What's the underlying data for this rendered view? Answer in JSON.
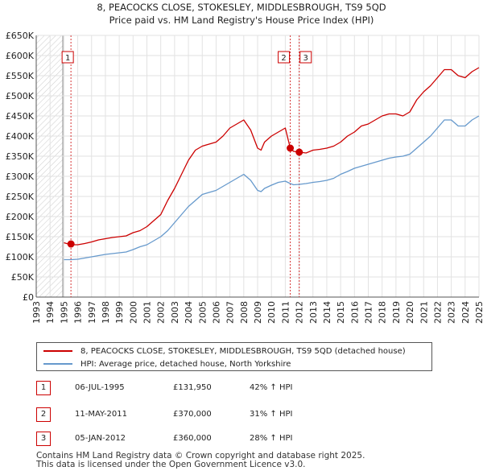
{
  "chart_data": {
    "type": "line",
    "title": "8, PEACOCKS CLOSE, STOKESLEY, MIDDLESBROUGH, TS9 5QD",
    "subtitle": "Price paid vs. HM Land Registry's House Price Index (HPI)",
    "xlim": [
      1993,
      2025
    ],
    "ylim": [
      0,
      650000
    ],
    "x_ticks": [
      "1993",
      "1994",
      "1995",
      "1996",
      "1997",
      "1998",
      "1999",
      "2000",
      "2001",
      "2002",
      "2003",
      "2004",
      "2005",
      "2006",
      "2007",
      "2008",
      "2009",
      "2010",
      "2011",
      "2012",
      "2013",
      "2014",
      "2015",
      "2016",
      "2017",
      "2018",
      "2019",
      "2020",
      "2021",
      "2022",
      "2023",
      "2024",
      "2025"
    ],
    "y_ticks": [
      {
        "value": 0,
        "label": "£0"
      },
      {
        "value": 50000,
        "label": "£50K"
      },
      {
        "value": 100000,
        "label": "£100K"
      },
      {
        "value": 150000,
        "label": "£150K"
      },
      {
        "value": 200000,
        "label": "£200K"
      },
      {
        "value": 250000,
        "label": "£250K"
      },
      {
        "value": 300000,
        "label": "£300K"
      },
      {
        "value": 350000,
        "label": "£350K"
      },
      {
        "value": 400000,
        "label": "£400K"
      },
      {
        "value": 450000,
        "label": "£450K"
      },
      {
        "value": 500000,
        "label": "£500K"
      },
      {
        "value": 550000,
        "label": "£550K"
      },
      {
        "value": 600000,
        "label": "£600K"
      },
      {
        "value": 650000,
        "label": "£650K"
      }
    ],
    "series": [
      {
        "name": "8, PEACOCKS CLOSE, STOKESLEY, MIDDLESBROUGH, TS9 5QD (detached house)",
        "color": "#cc0000",
        "x": [
          1995.0,
          1995.5,
          1996.0,
          1996.5,
          1997.0,
          1997.5,
          1998.0,
          1998.5,
          1999.0,
          1999.5,
          2000.0,
          2000.5,
          2001.0,
          2001.5,
          2002.0,
          2002.5,
          2003.0,
          2003.5,
          2004.0,
          2004.5,
          2005.0,
          2005.5,
          2006.0,
          2006.5,
          2007.0,
          2007.5,
          2008.0,
          2008.5,
          2009.0,
          2009.25,
          2009.5,
          2010.0,
          2010.5,
          2011.0,
          2011.36,
          2011.6,
          2012.01,
          2012.5,
          2013.0,
          2013.5,
          2014.0,
          2014.5,
          2015.0,
          2015.5,
          2016.0,
          2016.5,
          2017.0,
          2017.5,
          2018.0,
          2018.5,
          2019.0,
          2019.5,
          2020.0,
          2020.5,
          2021.0,
          2021.5,
          2022.0,
          2022.5,
          2023.0,
          2023.5,
          2024.0,
          2024.5,
          2025.0
        ],
        "values": [
          135000,
          130000,
          130000,
          133000,
          137000,
          142000,
          145000,
          148000,
          150000,
          152000,
          160000,
          165000,
          175000,
          190000,
          205000,
          240000,
          270000,
          305000,
          340000,
          365000,
          375000,
          380000,
          385000,
          400000,
          420000,
          430000,
          440000,
          415000,
          370000,
          365000,
          385000,
          400000,
          410000,
          420000,
          370000,
          362000,
          360000,
          358000,
          365000,
          367000,
          370000,
          375000,
          385000,
          400000,
          410000,
          425000,
          430000,
          440000,
          450000,
          455000,
          455000,
          450000,
          460000,
          490000,
          510000,
          525000,
          545000,
          565000,
          565000,
          550000,
          545000,
          560000,
          570000
        ]
      },
      {
        "name": "HPI: Average price, detached house, North Yorkshire",
        "color": "#6699cc",
        "x": [
          1995.0,
          1995.5,
          1996.0,
          1996.5,
          1997.0,
          1997.5,
          1998.0,
          1998.5,
          1999.0,
          1999.5,
          2000.0,
          2000.5,
          2001.0,
          2001.5,
          2002.0,
          2002.5,
          2003.0,
          2003.5,
          2004.0,
          2004.5,
          2005.0,
          2005.5,
          2006.0,
          2006.5,
          2007.0,
          2007.5,
          2008.0,
          2008.5,
          2009.0,
          2009.25,
          2009.5,
          2010.0,
          2010.5,
          2011.0,
          2011.36,
          2011.6,
          2012.01,
          2012.5,
          2013.0,
          2013.5,
          2014.0,
          2014.5,
          2015.0,
          2015.5,
          2016.0,
          2016.5,
          2017.0,
          2017.5,
          2018.0,
          2018.5,
          2019.0,
          2019.5,
          2020.0,
          2020.5,
          2021.0,
          2021.5,
          2022.0,
          2022.5,
          2023.0,
          2023.5,
          2024.0,
          2024.5,
          2025.0
        ],
        "values": [
          93000,
          93000,
          94000,
          97000,
          100000,
          103000,
          106000,
          108000,
          110000,
          112000,
          118000,
          125000,
          130000,
          140000,
          150000,
          165000,
          185000,
          205000,
          225000,
          240000,
          255000,
          260000,
          265000,
          275000,
          285000,
          295000,
          305000,
          290000,
          265000,
          262000,
          270000,
          278000,
          285000,
          288000,
          282000,
          279000,
          280000,
          282000,
          285000,
          287000,
          290000,
          295000,
          305000,
          312000,
          320000,
          325000,
          330000,
          335000,
          340000,
          345000,
          348000,
          350000,
          355000,
          370000,
          385000,
          400000,
          420000,
          440000,
          440000,
          425000,
          425000,
          440000,
          450000
        ]
      }
    ],
    "sale_markers": [
      {
        "label": "1",
        "x": 1995.51,
        "value": 131950
      },
      {
        "label": "2",
        "x": 2011.36,
        "value": 370000
      },
      {
        "label": "3",
        "x": 2012.01,
        "value": 360000
      }
    ],
    "legend": [
      {
        "label": "8, PEACOCKS CLOSE, STOKESLEY, MIDDLESBROUGH, TS9 5QD (detached house)",
        "color": "#cc0000"
      },
      {
        "label": "HPI: Average price, detached house, North Yorkshire",
        "color": "#6699cc"
      }
    ]
  },
  "sales": [
    {
      "num": "1",
      "date": "06-JUL-1995",
      "price": "£131,950",
      "hpi": "42% ↑ HPI"
    },
    {
      "num": "2",
      "date": "11-MAY-2011",
      "price": "£370,000",
      "hpi": "31% ↑ HPI"
    },
    {
      "num": "3",
      "date": "05-JAN-2012",
      "price": "£360,000",
      "hpi": "28% ↑ HPI"
    }
  ],
  "footer": {
    "line1": "Contains HM Land Registry data © Crown copyright and database right 2025.",
    "line2": "This data is licensed under the Open Government Licence v3.0."
  }
}
